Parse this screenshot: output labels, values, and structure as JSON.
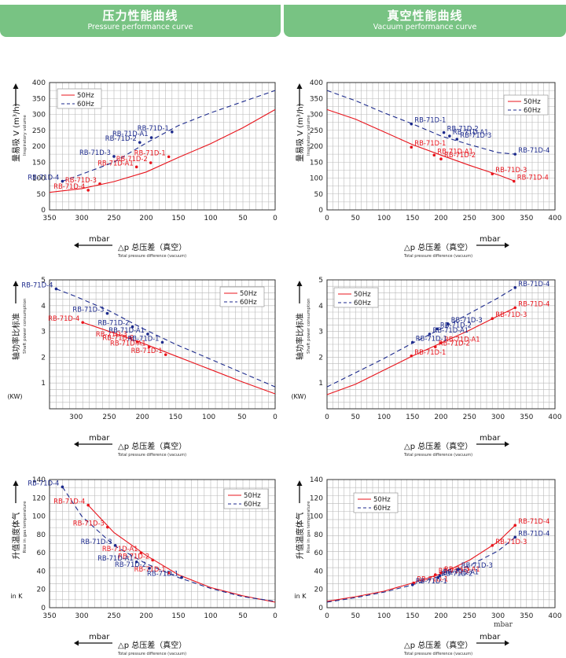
{
  "header": {
    "left_title": "压力性能曲线",
    "left_subtitle": "Pressure performance curve",
    "right_title": "真空性能曲线",
    "right_subtitle": "Vacuum performance curve"
  },
  "legend": {
    "hz50": "50Hz",
    "hz60": "60Hz"
  },
  "colors": {
    "hz50": "#e8141c",
    "hz60": "#1c2a8c",
    "header": "#78c383",
    "grid": "#9a9a9a"
  },
  "units": {
    "mbar": "mbar",
    "kw": "(KW)",
    "ink": "in K"
  },
  "chart_data": [
    {
      "type": "line",
      "title": "",
      "xlabel": "△p 总压差（真空）",
      "xlabel_en": "Total pressure difference (vacuum)",
      "ylabel": "量易吸 V (m³/h)",
      "ylabel_en": "Inspiratory volume",
      "xlim": [
        350,
        0
      ],
      "ylim": [
        0,
        400
      ],
      "xticks": [
        "350",
        "300",
        "250",
        "200",
        "150",
        "100",
        "50",
        "0"
      ],
      "yticks": [
        "0",
        "50",
        "100",
        "150",
        "200",
        "250",
        "300",
        "350",
        "400"
      ],
      "legend_position": "top-left",
      "series": [
        {
          "name": "50Hz",
          "style": "solid",
          "points": [
            [
              350,
              55
            ],
            [
              300,
              67
            ],
            [
              250,
              89
            ],
            [
              200,
              119
            ],
            [
              150,
              165
            ],
            [
              100,
              208
            ],
            [
              50,
              258
            ],
            [
              0,
              315
            ]
          ]
        },
        {
          "name": "60Hz",
          "style": "dashed",
          "points": [
            [
              330,
              90
            ],
            [
              300,
              112
            ],
            [
              250,
              150
            ],
            [
              200,
              210
            ],
            [
              150,
              265
            ],
            [
              100,
              305
            ],
            [
              50,
              340
            ],
            [
              0,
              375
            ]
          ]
        }
      ],
      "annotations": [
        {
          "text": "RB-71D-1",
          "color": "hz50",
          "x": 165,
          "y": 167
        },
        {
          "text": "RB-71D-2",
          "color": "hz50",
          "x": 193,
          "y": 148
        },
        {
          "text": "RB-71D-A1",
          "color": "hz50",
          "x": 215,
          "y": 135
        },
        {
          "text": "RB-71D-3",
          "color": "hz50",
          "x": 272,
          "y": 82
        },
        {
          "text": "RB-71D-4",
          "color": "hz50",
          "x": 290,
          "y": 62
        },
        {
          "text": "RB-71D-1",
          "color": "hz60",
          "x": 160,
          "y": 245
        },
        {
          "text": "RB-71D-A1",
          "color": "hz60",
          "x": 192,
          "y": 227
        },
        {
          "text": "RB-71D-2",
          "color": "hz60",
          "x": 210,
          "y": 212
        },
        {
          "text": "RB-71D-3",
          "color": "hz60",
          "x": 250,
          "y": 168
        },
        {
          "text": "RB-71D-4",
          "color": "hz60",
          "x": 330,
          "y": 90
        }
      ]
    },
    {
      "type": "line",
      "title": "",
      "xlabel": "△p 总压差（真空）",
      "xlabel_en": "Total pressure difference (vacuum)",
      "ylabel": "量易吸 V (m³/h)",
      "ylabel_en": "Inspiratory volume",
      "xlim": [
        0,
        400
      ],
      "ylim": [
        0,
        400
      ],
      "xticks": [
        "0",
        "50",
        "100",
        "150",
        "200",
        "250",
        "300",
        "350",
        "400"
      ],
      "yticks": [
        "0",
        "50",
        "100",
        "150",
        "200",
        "250",
        "300",
        "350",
        "400"
      ],
      "legend_position": "top-right",
      "series": [
        {
          "name": "50Hz",
          "style": "solid",
          "points": [
            [
              0,
              315
            ],
            [
              50,
              285
            ],
            [
              100,
              245
            ],
            [
              150,
              205
            ],
            [
              200,
              172
            ],
            [
              250,
              140
            ],
            [
              300,
              110
            ],
            [
              330,
              90
            ]
          ]
        },
        {
          "name": "60Hz",
          "style": "dashed",
          "points": [
            [
              0,
              375
            ],
            [
              50,
              343
            ],
            [
              100,
              305
            ],
            [
              150,
              270
            ],
            [
              200,
              232
            ],
            [
              250,
              205
            ],
            [
              300,
              180
            ],
            [
              330,
              175
            ]
          ]
        }
      ],
      "annotations": [
        {
          "text": "RB-71D-1",
          "color": "hz50",
          "x": 148,
          "y": 197
        },
        {
          "text": "RB-71D-A1",
          "color": "hz50",
          "x": 188,
          "y": 172
        },
        {
          "text": "RB-71D-2",
          "color": "hz50",
          "x": 200,
          "y": 160
        },
        {
          "text": "RB-71D-3",
          "color": "hz50",
          "x": 290,
          "y": 113
        },
        {
          "text": "RB-71D-4",
          "color": "hz50",
          "x": 328,
          "y": 90
        },
        {
          "text": "RB-71D-1",
          "color": "hz60",
          "x": 148,
          "y": 270
        },
        {
          "text": "RB-71D-2",
          "color": "hz60",
          "x": 205,
          "y": 243
        },
        {
          "text": "RB-71D-A1",
          "color": "hz60",
          "x": 215,
          "y": 232
        },
        {
          "text": "RB-71D-3",
          "color": "hz60",
          "x": 228,
          "y": 222
        },
        {
          "text": "RB-71D-4",
          "color": "hz60",
          "x": 330,
          "y": 175
        }
      ]
    },
    {
      "type": "line",
      "title": "",
      "xlabel": "△p 总压差（真空）",
      "xlabel_en": "Total pressure difference (vacuum)",
      "ylabel": "轴功率比标准",
      "ylabel_en": "Shaft power consumption",
      "xlim": [
        340,
        0
      ],
      "ylim": [
        0,
        5
      ],
      "xticks": [
        "300",
        "250",
        "200",
        "150",
        "100",
        "50",
        "0"
      ],
      "yticks": [
        "1",
        "2",
        "3",
        "4",
        "5"
      ],
      "legend_position": "top-right",
      "series": [
        {
          "name": "50Hz",
          "style": "solid",
          "points": [
            [
              290,
              3.35
            ],
            [
              250,
              3.0
            ],
            [
              200,
              2.55
            ],
            [
              150,
              2.05
            ],
            [
              100,
              1.55
            ],
            [
              50,
              1.05
            ],
            [
              0,
              0.58
            ]
          ]
        },
        {
          "name": "60Hz",
          "style": "dashed",
          "points": [
            [
              330,
              4.65
            ],
            [
              300,
              4.35
            ],
            [
              250,
              3.8
            ],
            [
              200,
              3.12
            ],
            [
              150,
              2.5
            ],
            [
              100,
              1.95
            ],
            [
              50,
              1.4
            ],
            [
              0,
              0.85
            ]
          ]
        }
      ],
      "annotations": [
        {
          "text": "RB-71D-4",
          "color": "hz50",
          "x": 290,
          "y": 3.35
        },
        {
          "text": "RB-71D-3",
          "color": "hz50",
          "x": 218,
          "y": 2.75
        },
        {
          "text": "RB-71D-2",
          "color": "hz50",
          "x": 208,
          "y": 2.6
        },
        {
          "text": "RB-71D-A1",
          "color": "hz50",
          "x": 190,
          "y": 2.4
        },
        {
          "text": "RB-71D-1",
          "color": "hz50",
          "x": 165,
          "y": 2.1
        },
        {
          "text": "RB-71D-4",
          "color": "hz60",
          "x": 330,
          "y": 4.65
        },
        {
          "text": "RB-71D-3",
          "color": "hz60",
          "x": 253,
          "y": 3.7
        },
        {
          "text": "RB-71D-2",
          "color": "hz60",
          "x": 215,
          "y": 3.18
        },
        {
          "text": "RB-71D-A1",
          "color": "hz60",
          "x": 192,
          "y": 2.9
        },
        {
          "text": "RB-71D-1",
          "color": "hz60",
          "x": 170,
          "y": 2.58
        }
      ]
    },
    {
      "type": "line",
      "title": "",
      "xlabel": "△p 总压差（真空）",
      "xlabel_en": "Total pressure difference (vacuum)",
      "ylabel": "轴功率比标准",
      "ylabel_en": "Shaft power consumption",
      "xlim": [
        0,
        400
      ],
      "ylim": [
        0,
        5
      ],
      "xticks": [
        "0",
        "50",
        "100",
        "150",
        "200",
        "250",
        "300",
        "350",
        "400"
      ],
      "yticks": [
        "1",
        "2",
        "3",
        "4",
        "5"
      ],
      "legend_position": "top-left",
      "series": [
        {
          "name": "50Hz",
          "style": "solid",
          "points": [
            [
              0,
              0.55
            ],
            [
              50,
              0.95
            ],
            [
              100,
              1.5
            ],
            [
              150,
              2.05
            ],
            [
              200,
              2.55
            ],
            [
              250,
              3.05
            ],
            [
              300,
              3.6
            ],
            [
              330,
              3.92
            ]
          ]
        },
        {
          "name": "60Hz",
          "style": "dashed",
          "points": [
            [
              0,
              0.85
            ],
            [
              50,
              1.4
            ],
            [
              100,
              1.95
            ],
            [
              150,
              2.55
            ],
            [
              200,
              3.1
            ],
            [
              250,
              3.7
            ],
            [
              300,
              4.3
            ],
            [
              330,
              4.7
            ]
          ]
        }
      ],
      "annotations": [
        {
          "text": "RB-71D-1",
          "color": "hz50",
          "x": 148,
          "y": 2.05
        },
        {
          "text": "RB-71D-2",
          "color": "hz50",
          "x": 190,
          "y": 2.4
        },
        {
          "text": "RB-71D-A1",
          "color": "hz50",
          "x": 200,
          "y": 2.55
        },
        {
          "text": "RB-71D-3",
          "color": "hz50",
          "x": 290,
          "y": 3.5
        },
        {
          "text": "RB-71D-4",
          "color": "hz50",
          "x": 330,
          "y": 3.92
        },
        {
          "text": "RB-71D-1",
          "color": "hz60",
          "x": 150,
          "y": 2.58
        },
        {
          "text": "RB-71D-A1",
          "color": "hz60",
          "x": 180,
          "y": 2.9
        },
        {
          "text": "RB-71D-2",
          "color": "hz60",
          "x": 193,
          "y": 3.1
        },
        {
          "text": "RB-71D-3",
          "color": "hz60",
          "x": 212,
          "y": 3.3
        },
        {
          "text": "RB-71D-4",
          "color": "hz60",
          "x": 330,
          "y": 4.7
        }
      ]
    },
    {
      "type": "line",
      "title": "",
      "xlabel": "△p 总压差（真空）",
      "xlabel_en": "Total pressure difference (vacuum)",
      "ylabel": "升值温度体气",
      "ylabel_en": "Rise in gas temperature",
      "xlim": [
        350,
        0
      ],
      "ylim": [
        0,
        140
      ],
      "xticks": [
        "350",
        "300",
        "250",
        "200",
        "150",
        "100",
        "50",
        "0"
      ],
      "yticks": [
        "0",
        "20",
        "40",
        "60",
        "80",
        "100",
        "120",
        "140"
      ],
      "legend_position": "top-right",
      "series": [
        {
          "name": "50Hz",
          "style": "solid",
          "points": [
            [
              290,
              112
            ],
            [
              250,
              82
            ],
            [
              200,
              57
            ],
            [
              150,
              36
            ],
            [
              100,
              22
            ],
            [
              50,
              13
            ],
            [
              0,
              6
            ]
          ]
        },
        {
          "name": "60Hz",
          "style": "dashed",
          "points": [
            [
              330,
              132
            ],
            [
              300,
              100
            ],
            [
              250,
              68
            ],
            [
              200,
              48
            ],
            [
              150,
              33
            ],
            [
              100,
              21
            ],
            [
              50,
              12
            ],
            [
              0,
              7
            ]
          ]
        }
      ],
      "annotations": [
        {
          "text": "RB-71D-4",
          "color": "hz50",
          "x": 290,
          "y": 112
        },
        {
          "text": "RB-71D-3",
          "color": "hz50",
          "x": 260,
          "y": 88
        },
        {
          "text": "RB-71D-A1",
          "color": "hz50",
          "x": 208,
          "y": 60
        },
        {
          "text": "RB-71D-2",
          "color": "hz50",
          "x": 190,
          "y": 52
        },
        {
          "text": "RB-71D-1",
          "color": "hz50",
          "x": 165,
          "y": 38
        },
        {
          "text": "RB-71D-4",
          "color": "hz60",
          "x": 330,
          "y": 132
        },
        {
          "text": "RB-71D-3",
          "color": "hz60",
          "x": 248,
          "y": 68
        },
        {
          "text": "RB-71D-A1",
          "color": "hz60",
          "x": 215,
          "y": 50
        },
        {
          "text": "RB-71D-2",
          "color": "hz60",
          "x": 195,
          "y": 43
        },
        {
          "text": "RB-71D-1",
          "color": "hz60",
          "x": 145,
          "y": 33
        }
      ]
    },
    {
      "type": "line",
      "title": "",
      "xlabel": "△p 总压差（真空）",
      "xlabel_en": "Total pressure difference (vacuum)",
      "ylabel": "升值温度体气",
      "ylabel_en": "Rise in gas temperature",
      "xlim": [
        0,
        400
      ],
      "ylim": [
        0,
        140
      ],
      "xticks": [
        "0",
        "50",
        "100",
        "150",
        "200",
        "250",
        "300",
        "350",
        "400"
      ],
      "yticks": [
        "0",
        "20",
        "40",
        "60",
        "80",
        "100",
        "120",
        "140"
      ],
      "legend_position": "top-left",
      "series": [
        {
          "name": "50Hz",
          "style": "solid",
          "points": [
            [
              0,
              7
            ],
            [
              50,
              12
            ],
            [
              100,
              18
            ],
            [
              150,
              27
            ],
            [
              200,
              37
            ],
            [
              250,
              52
            ],
            [
              300,
              72
            ],
            [
              330,
              90
            ]
          ]
        },
        {
          "name": "60Hz",
          "style": "dashed",
          "points": [
            [
              0,
              6
            ],
            [
              50,
              11
            ],
            [
              100,
              17
            ],
            [
              150,
              25
            ],
            [
              200,
              35
            ],
            [
              250,
              46
            ],
            [
              300,
              62
            ],
            [
              330,
              77
            ]
          ]
        }
      ],
      "annotations": [
        {
          "text": "RB-71D-1",
          "color": "hz50",
          "x": 152,
          "y": 27
        },
        {
          "text": "RB-71D-2",
          "color": "hz50",
          "x": 190,
          "y": 36
        },
        {
          "text": "RB-71D-A1",
          "color": "hz50",
          "x": 200,
          "y": 38
        },
        {
          "text": "RB-71D-3",
          "color": "hz50",
          "x": 290,
          "y": 68
        },
        {
          "text": "RB-71D-4",
          "color": "hz50",
          "x": 330,
          "y": 90
        },
        {
          "text": "RB-71D-1",
          "color": "hz60",
          "x": 150,
          "y": 25
        },
        {
          "text": "RB-71D-2",
          "color": "hz60",
          "x": 195,
          "y": 33
        },
        {
          "text": "RB-71D-A1",
          "color": "hz60",
          "x": 198,
          "y": 35
        },
        {
          "text": "RB-71D-3",
          "color": "hz60",
          "x": 230,
          "y": 42
        },
        {
          "text": "RB-71D-4",
          "color": "hz60",
          "x": 330,
          "y": 77
        }
      ]
    }
  ]
}
